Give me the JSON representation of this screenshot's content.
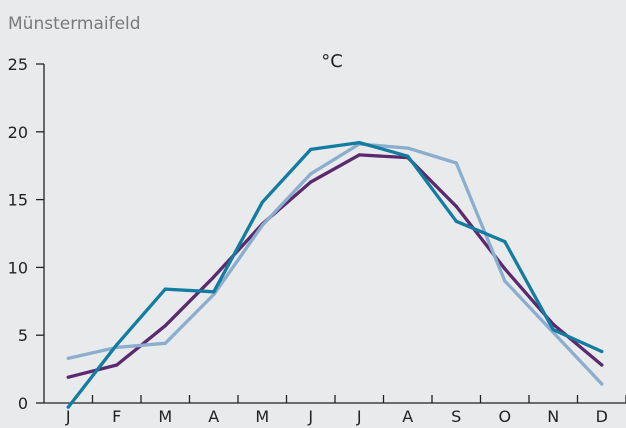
{
  "chart_data": {
    "type": "line",
    "place_label": "Münstermaifeld",
    "unit_label": "°C",
    "categories": [
      "J",
      "F",
      "M",
      "A",
      "M",
      "J",
      "J",
      "A",
      "S",
      "O",
      "N",
      "D"
    ],
    "ylim": [
      0,
      25
    ],
    "yticks": [
      0,
      5,
      10,
      15,
      20,
      25
    ],
    "grid": false,
    "series": [
      {
        "color": "#5b2a6e",
        "values": [
          1.9,
          2.8,
          5.7,
          9.3,
          13.2,
          16.3,
          18.3,
          18.1,
          14.5,
          9.9,
          5.8,
          2.8
        ]
      },
      {
        "color": "#8badce",
        "values": [
          3.3,
          4.1,
          4.4,
          8.0,
          13.1,
          16.9,
          19.1,
          18.8,
          17.7,
          9.0,
          5.2,
          1.4
        ]
      },
      {
        "color": "#137ca0",
        "values": [
          -0.3,
          4.3,
          8.4,
          8.2,
          14.8,
          18.7,
          19.2,
          18.2,
          13.4,
          11.9,
          5.4,
          3.8
        ]
      }
    ]
  }
}
